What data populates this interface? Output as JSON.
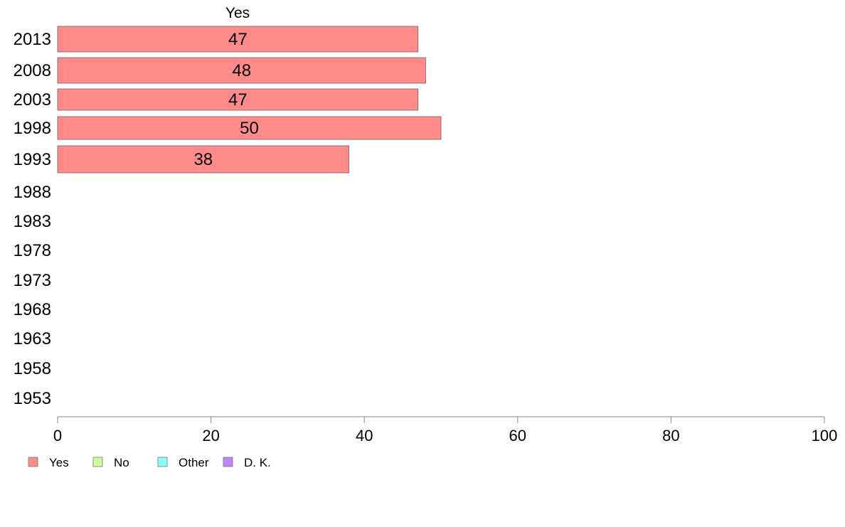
{
  "chart_data": {
    "type": "bar",
    "orientation": "horizontal",
    "stacked": true,
    "header": "Yes",
    "categories": [
      "2013",
      "2008",
      "2003",
      "1998",
      "1993",
      "1988",
      "1983",
      "1978",
      "1973",
      "1968",
      "1963",
      "1958",
      "1953"
    ],
    "series": [
      {
        "name": "Yes",
        "color": "#ff8a8a",
        "values": [
          47,
          48,
          47,
          50,
          38,
          null,
          null,
          null,
          null,
          null,
          null,
          null,
          null
        ]
      },
      {
        "name": "No",
        "color": "#ccff99",
        "values": [
          null,
          null,
          null,
          null,
          null,
          null,
          null,
          null,
          null,
          null,
          null,
          null,
          null
        ]
      },
      {
        "name": "Other",
        "color": "#88ffff",
        "values": [
          null,
          null,
          null,
          null,
          null,
          null,
          null,
          null,
          null,
          null,
          null,
          null,
          null
        ]
      },
      {
        "name": "D. K.",
        "color": "#bb88ff",
        "values": [
          null,
          null,
          null,
          null,
          null,
          null,
          null,
          null,
          null,
          null,
          null,
          null,
          null
        ]
      }
    ],
    "data_labels": [
      "47",
      "48",
      "47",
      "50",
      "38",
      "",
      "",
      "",
      "",
      "",
      "",
      "",
      ""
    ],
    "xlim": [
      0,
      100
    ],
    "x_ticks": [
      "0",
      "20",
      "40",
      "60",
      "80",
      "100"
    ],
    "xlabel": "",
    "ylabel": "",
    "grid": false,
    "legend_position": "bottom-left"
  }
}
